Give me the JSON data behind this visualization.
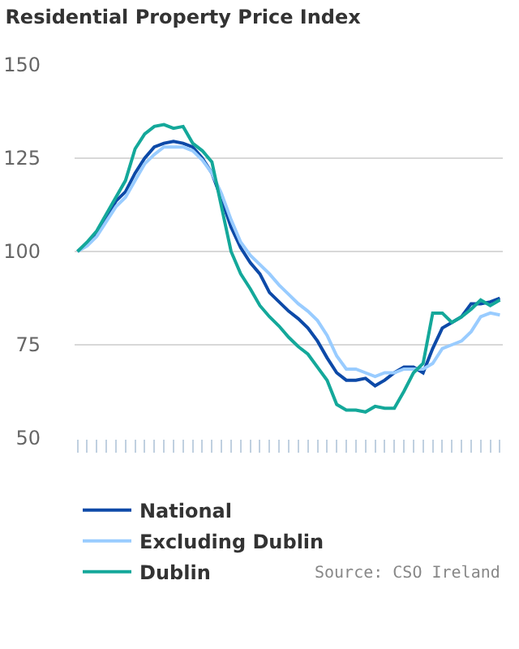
{
  "chart_data": {
    "type": "line",
    "title": "Residential Property Price Index",
    "categories": [
      null,
      null,
      null,
      null,
      null,
      null,
      null,
      null,
      null,
      null,
      null,
      null,
      null,
      null,
      null,
      null,
      null,
      null,
      null,
      null,
      null,
      null,
      null,
      null,
      null,
      null,
      null,
      null,
      null,
      null,
      null,
      null,
      null,
      null,
      null,
      null,
      null,
      null,
      null,
      null,
      null,
      null,
      null,
      null,
      null
    ],
    "series": [
      {
        "name": "National",
        "color": "#0d4aa8",
        "values": [
          100,
          102,
          105,
          109,
          113.5,
          116,
          121,
          125,
          128,
          129,
          129.5,
          129,
          128,
          125,
          121,
          114,
          106.5,
          101,
          97,
          94,
          89,
          86.5,
          84,
          82,
          79.5,
          76,
          71.5,
          67.5,
          65.5,
          65.5,
          66,
          64,
          65.5,
          67.5,
          69,
          69,
          67.5,
          74,
          79.5,
          81,
          82.5,
          86,
          86,
          86.5,
          87.5
        ]
      },
      {
        "name": "Excluding Dublin",
        "color": "#99ccff",
        "values": [
          100,
          101.5,
          104,
          108,
          112,
          114.5,
          119,
          123.5,
          126,
          128,
          128,
          128,
          127,
          124.5,
          121,
          115.5,
          108.5,
          102.5,
          99,
          96.5,
          94,
          91,
          88.5,
          86,
          84,
          81.5,
          77.5,
          72,
          68.5,
          68.5,
          67.5,
          66.5,
          67.5,
          67.5,
          68.5,
          68.5,
          68.5,
          70,
          74,
          75,
          76,
          78.5,
          82.5,
          83.5,
          83
        ]
      },
      {
        "name": "Dublin",
        "color": "#14a89a",
        "values": [
          100,
          102.5,
          105.5,
          110,
          114.5,
          119,
          127.5,
          131.5,
          133.5,
          134,
          133,
          133.5,
          129,
          127,
          124,
          112,
          100,
          94,
          90,
          85.5,
          82.5,
          80,
          77,
          74.5,
          72.5,
          69,
          65.5,
          59,
          57.5,
          57.5,
          57,
          58.5,
          58,
          58,
          62.5,
          67.5,
          70,
          83.5,
          83.5,
          81,
          82.5,
          84.5,
          87,
          85.5,
          87
        ]
      }
    ],
    "ylim": [
      50,
      150
    ],
    "yticks": [
      50,
      75,
      100,
      125,
      150
    ],
    "grid": "y",
    "legend": "bottom",
    "tick_labels": "y",
    "annotations": [
      "Source: CSO Ireland"
    ]
  }
}
